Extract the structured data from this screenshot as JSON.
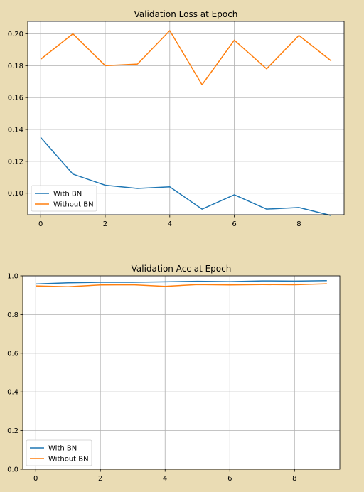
{
  "chart_data": [
    {
      "type": "line",
      "title": "Validation Loss at Epoch",
      "xlabel": "",
      "ylabel": "",
      "x": [
        0,
        1,
        2,
        3,
        4,
        5,
        6,
        7,
        8,
        9
      ],
      "xlim": [
        -0.4,
        9.4
      ],
      "ylim": [
        0.0865,
        0.2078
      ],
      "xticks": [
        0,
        2,
        4,
        6,
        8
      ],
      "xtick_labels": [
        "0",
        "2",
        "4",
        "6",
        "8"
      ],
      "yticks": [
        0.1,
        0.12,
        0.14,
        0.16,
        0.18,
        0.2
      ],
      "ytick_labels": [
        "0.10",
        "0.12",
        "0.14",
        "0.16",
        "0.18",
        "0.20"
      ],
      "grid": true,
      "legend_position": "lower-left",
      "series": [
        {
          "name": "With BN",
          "color": "#1f77b4",
          "values": [
            0.135,
            0.112,
            0.105,
            0.103,
            0.104,
            0.09,
            0.099,
            0.09,
            0.091,
            0.086
          ]
        },
        {
          "name": "Without BN",
          "color": "#ff7f0e",
          "values": [
            0.184,
            0.2,
            0.18,
            0.181,
            0.202,
            0.168,
            0.196,
            0.178,
            0.199,
            0.183
          ]
        }
      ]
    },
    {
      "type": "line",
      "title": "Validation Acc at Epoch",
      "xlabel": "",
      "ylabel": "",
      "x": [
        0,
        1,
        2,
        3,
        4,
        5,
        6,
        7,
        8,
        9
      ],
      "xlim": [
        -0.4,
        9.4
      ],
      "ylim": [
        0.0,
        1.0
      ],
      "xticks": [
        0,
        2,
        4,
        6,
        8
      ],
      "xtick_labels": [
        "0",
        "2",
        "4",
        "6",
        "8"
      ],
      "yticks": [
        0.0,
        0.2,
        0.4,
        0.6,
        0.8,
        1.0
      ],
      "ytick_labels": [
        "0.0",
        "0.2",
        "0.4",
        "0.6",
        "0.8",
        "1.0"
      ],
      "grid": true,
      "legend_position": "lower-left",
      "series": [
        {
          "name": "With BN",
          "color": "#1f77b4",
          "values": [
            0.958,
            0.964,
            0.967,
            0.967,
            0.969,
            0.972,
            0.97,
            0.974,
            0.973,
            0.975
          ]
        },
        {
          "name": "Without BN",
          "color": "#ff7f0e",
          "values": [
            0.948,
            0.944,
            0.953,
            0.954,
            0.946,
            0.955,
            0.953,
            0.955,
            0.954,
            0.959
          ]
        }
      ]
    }
  ]
}
